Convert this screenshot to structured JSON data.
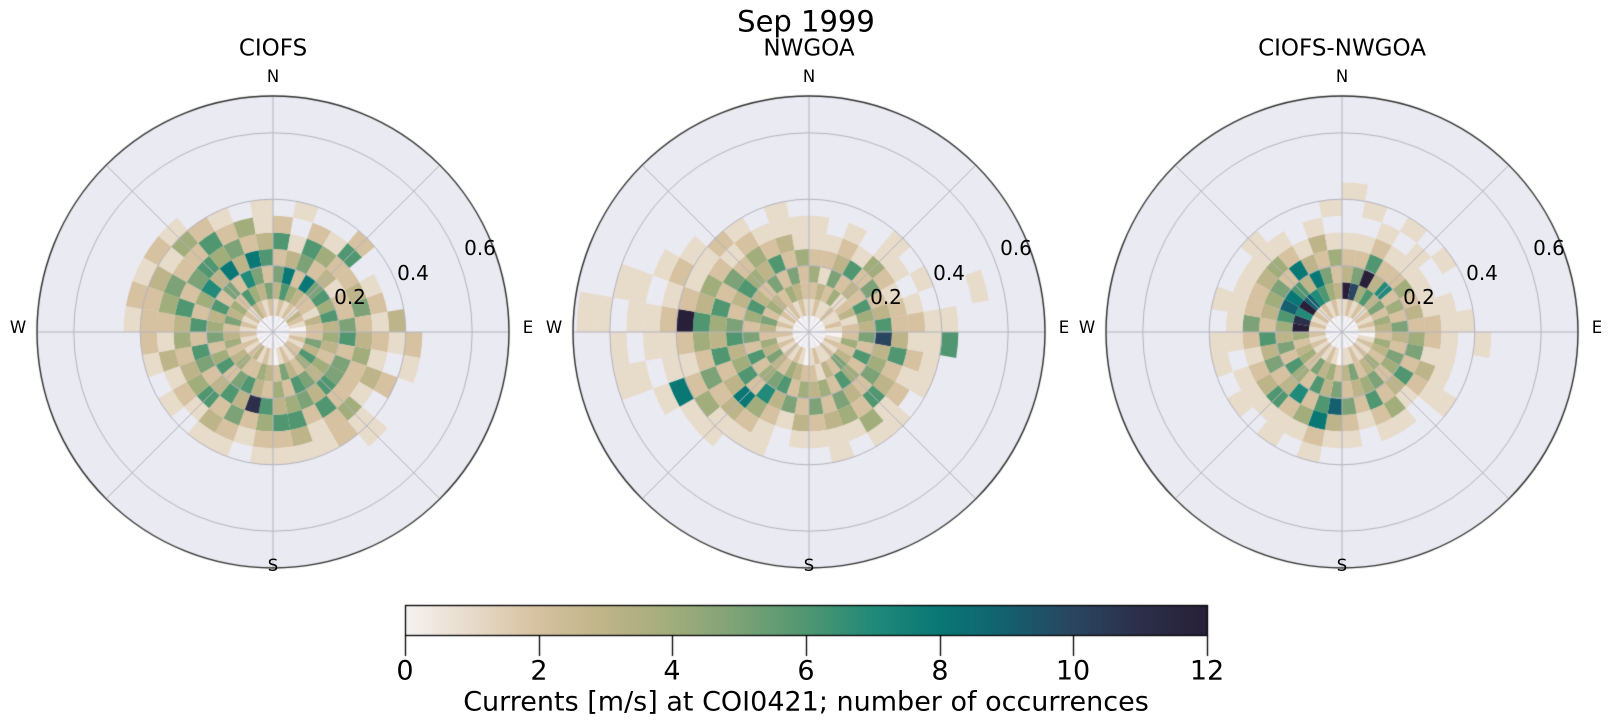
{
  "chart_data": {
    "type": "polar_histogram",
    "suptitle": "Sep 1999",
    "orientation": {
      "zero": "N",
      "direction": "clockwise"
    },
    "angle_bin_deg": 10,
    "r_bin": 0.05,
    "r_max": 0.71,
    "r_grid": [
      0.2,
      0.4,
      0.6
    ],
    "panel_bg": "#eaeaf2",
    "grid_color": "#b4b4bc",
    "spine_color": "#2d2d2d",
    "subplots": [
      {
        "title": "CIOFS",
        "compass": {
          "n": "N",
          "e": "E",
          "s": "S",
          "w": "W"
        },
        "rtick_labels": [
          "0.2",
          "0.4",
          "0.6"
        ],
        "counts": [
          [
            null,
            1,
            3,
            5,
            2,
            6,
            2
          ],
          [
            0,
            2,
            6,
            8,
            3,
            1,
            null,
            1
          ],
          [
            null,
            1,
            4,
            2,
            5,
            6,
            2
          ],
          [
            0,
            2,
            3,
            8,
            2,
            4,
            1
          ],
          [
            null,
            1,
            2,
            5,
            3,
            2,
            6,
            2
          ],
          [
            0,
            3,
            2,
            6,
            1,
            2
          ],
          [
            null,
            2,
            1,
            4,
            2,
            3,
            1
          ],
          [
            0,
            1,
            3,
            6,
            2,
            5,
            2
          ],
          [
            null,
            0,
            2,
            3,
            5,
            2,
            1,
            3
          ],
          [
            null,
            1,
            2,
            4,
            6,
            3,
            2,
            1,
            2
          ],
          [
            0,
            2,
            5,
            3,
            2,
            4,
            1,
            null,
            1
          ],
          [
            null,
            1,
            3,
            2,
            5,
            2,
            3,
            2
          ],
          [
            0,
            2,
            6,
            4,
            5,
            2,
            1
          ],
          [
            null,
            2,
            4,
            3,
            6,
            2,
            4,
            1,
            1
          ],
          [
            0,
            1,
            2,
            5,
            3,
            6,
            2,
            2
          ],
          [
            null,
            2,
            3,
            6,
            5,
            2,
            1,
            1
          ],
          [
            0,
            1,
            5,
            2,
            4,
            6,
            3,
            1
          ],
          [
            null,
            0,
            2,
            4,
            3,
            6,
            2,
            1
          ],
          [
            null,
            1,
            3,
            2,
            6,
            4,
            2,
            1
          ],
          [
            0,
            2,
            4,
            3,
            11,
            2,
            1
          ],
          [
            null,
            1,
            2,
            6,
            3,
            5,
            2,
            1
          ],
          [
            0,
            3,
            2,
            5,
            6,
            2,
            3,
            1
          ],
          [
            null,
            2,
            4,
            2,
            3,
            6,
            1
          ],
          [
            0,
            1,
            3,
            6,
            2,
            4,
            2,
            1
          ],
          [
            null,
            2,
            2,
            4,
            5,
            3,
            1
          ],
          [
            0,
            1,
            4,
            2,
            6,
            2,
            3,
            1
          ],
          [
            null,
            2,
            3,
            5,
            2,
            4,
            1,
            2
          ],
          [
            null,
            1,
            2,
            4,
            6,
            3,
            2,
            2,
            1
          ],
          [
            0,
            2,
            5,
            3,
            2,
            6,
            4,
            2,
            2
          ],
          [
            null,
            1,
            3,
            6,
            4,
            2,
            5,
            3,
            1
          ],
          [
            0,
            2,
            4,
            2,
            7,
            5,
            2,
            1,
            2
          ],
          [
            null,
            1,
            2,
            5,
            3,
            6,
            2,
            4,
            1
          ],
          [
            0,
            3,
            6,
            2,
            8,
            4,
            6,
            2
          ],
          [
            null,
            2,
            4,
            7,
            3,
            5,
            2,
            1
          ],
          [
            0,
            1,
            3,
            5,
            8,
            2,
            4
          ],
          [
            null,
            2,
            5,
            2,
            6,
            3,
            1,
            1
          ]
        ]
      },
      {
        "title": "NWGOA",
        "compass": {
          "n": "N",
          "e": "E",
          "s": "S",
          "w": "W"
        },
        "rtick_labels": [
          "0.2",
          "0.4",
          "0.6"
        ],
        "counts": [
          [
            null,
            1,
            2,
            4,
            2,
            1,
            1
          ],
          [
            0,
            2,
            3,
            1,
            2,
            1
          ],
          [
            null,
            1,
            2,
            5,
            3,
            2,
            1
          ],
          [
            0,
            1,
            4,
            2,
            6,
            1
          ],
          [
            null,
            2,
            1,
            3,
            2,
            4,
            1,
            1
          ],
          [
            0,
            1,
            2,
            2,
            5,
            2,
            1
          ],
          [
            null,
            1,
            3,
            6,
            2,
            1,
            null,
            1
          ],
          [
            0,
            2,
            1,
            4,
            3,
            2,
            1,
            null,
            null,
            null,
            1
          ],
          [
            null,
            1,
            2,
            3,
            6,
            2,
            2,
            1,
            1
          ],
          [
            null,
            0,
            2,
            5,
            10,
            3,
            1,
            1,
            6
          ],
          [
            0,
            1,
            4,
            2,
            3,
            6,
            2,
            1
          ],
          [
            null,
            2,
            2,
            6,
            4,
            2,
            1,
            1
          ],
          [
            0,
            1,
            3,
            2,
            5,
            3,
            2
          ],
          [
            null,
            2,
            5,
            4,
            2,
            6,
            1,
            1
          ],
          [
            0,
            1,
            2,
            6,
            3,
            2,
            4,
            1
          ],
          [
            null,
            1,
            3,
            2,
            5,
            4,
            1
          ],
          [
            0,
            2,
            1,
            4,
            2,
            3,
            1,
            1
          ],
          [
            null,
            1,
            2,
            3,
            5,
            2,
            1
          ],
          [
            null,
            0,
            2,
            4,
            2,
            3,
            1
          ],
          [
            0,
            1,
            3,
            2,
            5,
            1
          ],
          [
            null,
            2,
            4,
            6,
            3,
            2,
            1,
            1
          ],
          [
            0,
            1,
            2,
            5,
            7,
            4,
            2,
            1
          ],
          [
            null,
            2,
            3,
            4,
            2,
            8,
            3,
            1,
            1
          ],
          [
            0,
            1,
            5,
            2,
            6,
            3,
            2,
            4,
            1
          ],
          [
            null,
            2,
            3,
            6,
            4,
            2,
            5,
            2,
            8,
            1
          ],
          [
            0,
            1,
            4,
            2,
            3,
            6,
            2,
            1,
            1,
            null,
            1,
            1
          ],
          [
            null,
            2,
            2,
            5,
            6,
            3,
            4,
            2,
            1,
            1,
            null,
            1
          ],
          [
            null,
            1,
            3,
            2,
            5,
            4,
            6,
            12,
            2,
            1,
            1,
            null,
            1,
            1
          ],
          [
            0,
            2,
            5,
            4,
            2,
            6,
            3,
            2,
            1,
            null,
            1,
            1
          ],
          [
            null,
            1,
            2,
            6,
            3,
            2,
            4,
            1,
            2,
            1
          ],
          [
            0,
            2,
            4,
            3,
            6,
            5,
            2,
            1,
            1
          ],
          [
            null,
            1,
            3,
            2,
            4,
            2,
            1,
            2
          ],
          [
            0,
            2,
            2,
            5,
            3,
            4,
            2,
            1
          ],
          [
            null,
            1,
            4,
            2,
            6,
            2,
            1
          ],
          [
            0,
            2,
            3,
            5,
            2,
            3,
            1,
            1
          ],
          [
            null,
            1,
            2,
            2,
            4,
            1,
            1
          ]
        ]
      },
      {
        "title": "CIOFS-NWGOA",
        "compass": {
          "n": "N",
          "e": "E",
          "s": "S",
          "w": "W"
        },
        "rtick_labels": [
          "0.2",
          "0.4",
          "0.6"
        ],
        "counts": [
          [
            null,
            1,
            12,
            3,
            2,
            1,
            null,
            null,
            1
          ],
          [
            0,
            2,
            10,
            5,
            2,
            1,
            null,
            1
          ],
          [
            null,
            1,
            4,
            12,
            6,
            2,
            1
          ],
          [
            0,
            2,
            6,
            3,
            2,
            1,
            null,
            1
          ],
          [
            null,
            1,
            3,
            7,
            2,
            1,
            1
          ],
          [
            0,
            2,
            5,
            2,
            4,
            1,
            null,
            1
          ],
          [
            null,
            1,
            2,
            4,
            2,
            1
          ],
          [
            0,
            2,
            4,
            2,
            3,
            1,
            1
          ],
          [
            null,
            1,
            3,
            5,
            2,
            2,
            1,
            1
          ],
          [
            null,
            0,
            2,
            3,
            4,
            2,
            1,
            null,
            1
          ],
          [
            0,
            1,
            4,
            2,
            5,
            1,
            1
          ],
          [
            null,
            2,
            3,
            5,
            2,
            3,
            1
          ],
          [
            0,
            1,
            2,
            4,
            6,
            2,
            1,
            1
          ],
          [
            null,
            2,
            4,
            2,
            3,
            1
          ],
          [
            0,
            1,
            3,
            5,
            2,
            4,
            1
          ],
          [
            null,
            2,
            2,
            4,
            6,
            2,
            1
          ],
          [
            0,
            1,
            5,
            3,
            2,
            1
          ],
          [
            null,
            1,
            3,
            2,
            5,
            2,
            1
          ],
          [
            null,
            0,
            2,
            5,
            9,
            3,
            1
          ],
          [
            0,
            1,
            4,
            3,
            6,
            8,
            2,
            1
          ],
          [
            null,
            2,
            3,
            6,
            2,
            4,
            1
          ],
          [
            0,
            1,
            5,
            2,
            7,
            2,
            1,
            1
          ],
          [
            null,
            2,
            2,
            4,
            3,
            6,
            1
          ],
          [
            0,
            1,
            4,
            6,
            2,
            3,
            1,
            1
          ],
          [
            null,
            2,
            3,
            2,
            5,
            2,
            1
          ],
          [
            0,
            1,
            2,
            5,
            3,
            1,
            null,
            1
          ],
          [
            null,
            2,
            4,
            3,
            6,
            2,
            1,
            1
          ],
          [
            null,
            1,
            12,
            4,
            2,
            5,
            1
          ],
          [
            0,
            2,
            11,
            6,
            3,
            2,
            1,
            1
          ],
          [
            null,
            1,
            7,
            9,
            4,
            2,
            1
          ],
          [
            0,
            2,
            12,
            8,
            5,
            3,
            1
          ],
          [
            null,
            1,
            9,
            6,
            2,
            4,
            1,
            1
          ],
          [
            0,
            2,
            7,
            3,
            8,
            2,
            1
          ],
          [
            null,
            1,
            6,
            8,
            3,
            1
          ],
          [
            0,
            2,
            4,
            5,
            2,
            3,
            1
          ],
          [
            null,
            1,
            3,
            2,
            4,
            1,
            null,
            1
          ]
        ]
      }
    ],
    "colorbar": {
      "label": "Currents [m/s] at COI0421; number of occurrences",
      "tick_labels": [
        "0",
        "2",
        "4",
        "6",
        "8",
        "10",
        "12"
      ],
      "tick_values": [
        0,
        2,
        4,
        6,
        8,
        10,
        12
      ],
      "vmin": 0,
      "vmax": 12,
      "colormap_stops": [
        [
          0,
          "#f6f3f2"
        ],
        [
          1,
          "#e7dbca"
        ],
        [
          2,
          "#d6c1a0"
        ],
        [
          3,
          "#beb489"
        ],
        [
          4,
          "#a2ad7c"
        ],
        [
          5,
          "#7da277"
        ],
        [
          6,
          "#509771"
        ],
        [
          7,
          "#218a79"
        ],
        [
          8,
          "#097875"
        ],
        [
          9,
          "#14606f"
        ],
        [
          10,
          "#2a4560"
        ],
        [
          11,
          "#2c2f4a"
        ],
        [
          12,
          "#281f38"
        ]
      ]
    }
  }
}
